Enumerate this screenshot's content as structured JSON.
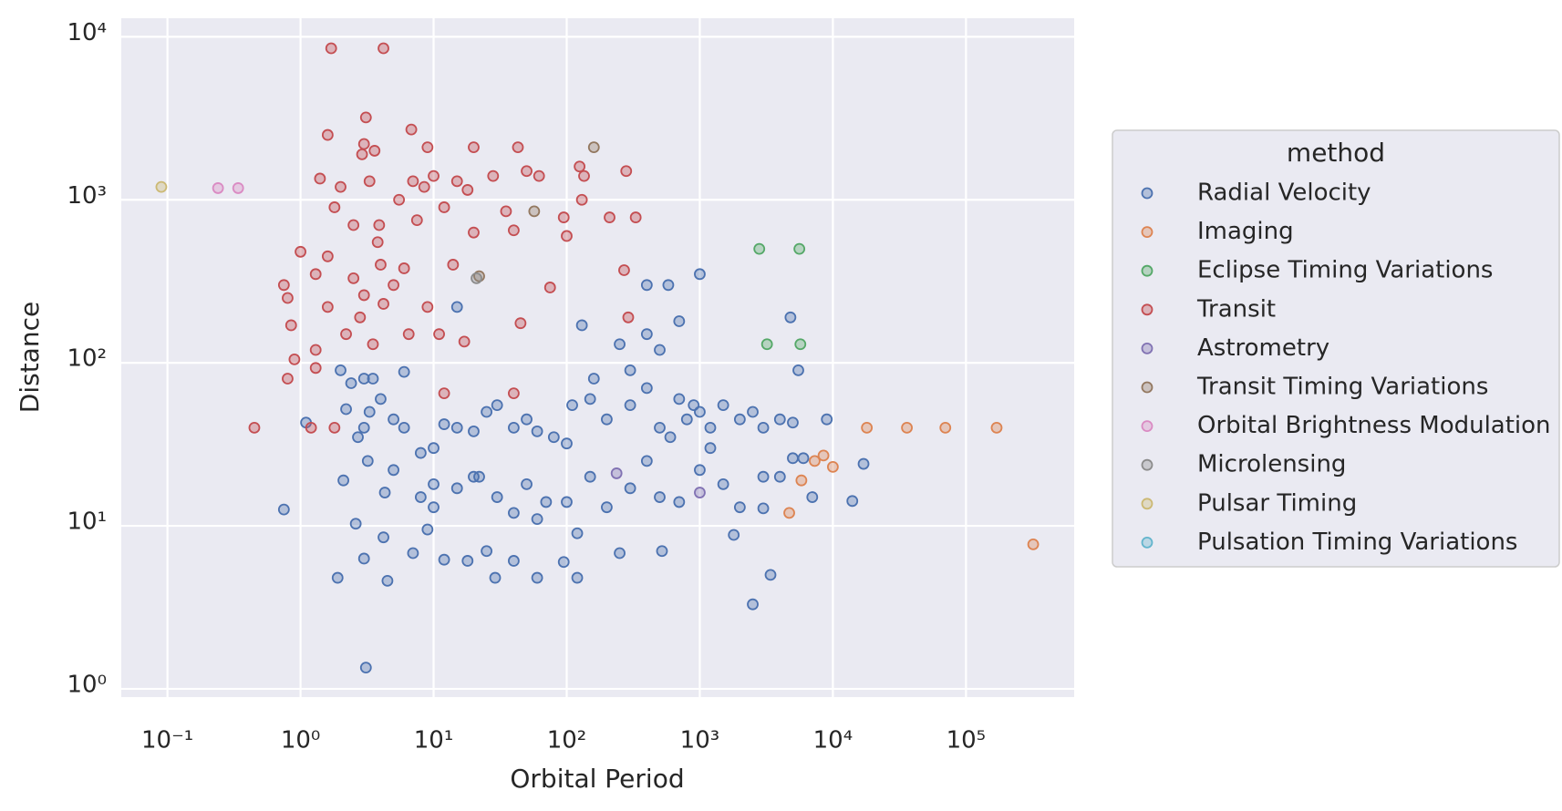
{
  "chart_data": {
    "type": "scatter",
    "xlabel": "Orbital Period",
    "ylabel": "Distance",
    "xscale": "log",
    "yscale": "log",
    "grid": true,
    "legend_title": "method",
    "legend_position": "right",
    "xlim": [
      0.045,
      650000
    ],
    "ylim": [
      0.89,
      13000
    ],
    "xticks": [
      {
        "value": 0.1,
        "label": "10⁻¹"
      },
      {
        "value": 1,
        "label": "10⁰"
      },
      {
        "value": 10,
        "label": "10¹"
      },
      {
        "value": 100,
        "label": "10²"
      },
      {
        "value": 1000,
        "label": "10³"
      },
      {
        "value": 10000,
        "label": "10⁴"
      },
      {
        "value": 100000,
        "label": "10⁵"
      }
    ],
    "yticks": [
      {
        "value": 1,
        "label": "10⁰"
      },
      {
        "value": 10,
        "label": "10¹"
      },
      {
        "value": 100,
        "label": "10²"
      },
      {
        "value": 1000,
        "label": "10³"
      },
      {
        "value": 10000,
        "label": "10⁴"
      }
    ],
    "series": [
      {
        "name": "Radial Velocity",
        "color": "#4c72b0",
        "x": [
          3.1,
          1.9,
          4.5,
          3,
          7,
          2.6,
          0.75,
          4.2,
          9,
          12,
          18,
          29,
          40,
          60,
          95,
          120,
          250,
          520,
          2500,
          3400,
          1800,
          3000,
          14000,
          17000,
          9000,
          5500,
          4800,
          1000,
          400,
          580,
          15,
          130,
          250,
          400,
          500,
          700,
          160,
          300,
          2,
          2.4,
          3.5,
          6,
          1.1,
          2.2,
          3,
          4,
          5,
          6,
          8,
          10,
          12,
          15,
          20,
          25,
          30,
          40,
          50,
          60,
          80,
          100,
          110,
          150,
          200,
          300,
          400,
          500,
          600,
          700,
          800,
          900,
          1000,
          1200,
          1500,
          2000,
          2500,
          3000,
          4000,
          5000,
          2.1,
          3.2,
          5,
          8,
          10,
          15,
          20,
          30,
          40,
          50,
          70,
          100,
          150,
          200,
          300,
          400,
          500,
          700,
          1000,
          1200,
          1500,
          2000,
          3000,
          4000,
          5000,
          6000,
          7000,
          3,
          3.3,
          2.7,
          4.3,
          10,
          22,
          120,
          25,
          60
        ],
        "values": [
          1.35,
          4.8,
          4.6,
          6.3,
          6.8,
          10.3,
          12.6,
          8.5,
          9.5,
          6.2,
          6.1,
          4.8,
          6.1,
          4.8,
          6,
          4.8,
          6.8,
          7,
          3.3,
          5,
          8.8,
          12.8,
          14.2,
          24,
          45,
          90,
          190,
          350,
          300,
          300,
          220,
          170,
          130,
          150,
          120,
          180,
          80,
          90,
          90,
          75,
          80,
          88,
          43,
          52,
          40,
          60,
          45,
          40,
          28,
          30,
          42,
          40,
          38,
          50,
          55,
          40,
          45,
          38,
          35,
          32,
          55,
          60,
          45,
          55,
          70,
          40,
          35,
          60,
          45,
          55,
          50,
          40,
          55,
          45,
          50,
          40,
          45,
          43,
          19,
          25,
          22,
          15,
          18,
          17,
          20,
          15,
          12,
          18,
          14,
          14,
          20,
          13,
          17,
          25,
          15,
          14,
          22,
          30,
          18,
          13,
          20,
          20,
          26,
          26,
          15,
          80,
          50,
          35,
          16,
          13,
          20,
          9,
          7,
          11
        ]
      },
      {
        "name": "Imaging",
        "color": "#dd8452",
        "x": [
          7300,
          8500,
          10000,
          5800,
          4700,
          18000,
          36000,
          70000,
          170000,
          320000
        ],
        "values": [
          25,
          27,
          23,
          19,
          12,
          40,
          40,
          40,
          40,
          7.7
        ]
      },
      {
        "name": "Eclipse Timing Variations",
        "color": "#55a868",
        "x": [
          2800,
          5600,
          3200,
          5700
        ],
        "values": [
          500,
          500,
          130,
          130
        ]
      },
      {
        "name": "Transit",
        "color": "#c44e52",
        "x": [
          1.7,
          4.2,
          3.1,
          1.6,
          6.8,
          3,
          9,
          20,
          43,
          3.6,
          2.9,
          1.4,
          3.3,
          7,
          10,
          15,
          28,
          50,
          62,
          125,
          135,
          280,
          2,
          8.5,
          18,
          5.5,
          130,
          1.8,
          12,
          35,
          95,
          210,
          330,
          2.5,
          7.5,
          40,
          100,
          1,
          1.6,
          3.8,
          20,
          270,
          0.75,
          1.3,
          2.5,
          4,
          6,
          14,
          75,
          0.8,
          1.6,
          3,
          5,
          9,
          45,
          290,
          0.85,
          2.2,
          3.5,
          6.5,
          11,
          17,
          0.9,
          1.3,
          1.3,
          0.8,
          2.8,
          0.45,
          1.2,
          1.8,
          12,
          40,
          4.2,
          3.9
        ],
        "values": [
          8500,
          8500,
          3200,
          2500,
          2700,
          2200,
          2100,
          2100,
          2100,
          2000,
          1900,
          1350,
          1300,
          1300,
          1400,
          1300,
          1400,
          1500,
          1400,
          1600,
          1400,
          1500,
          1200,
          1200,
          1150,
          1000,
          1000,
          900,
          900,
          850,
          780,
          780,
          780,
          700,
          750,
          650,
          600,
          480,
          450,
          550,
          630,
          370,
          300,
          350,
          330,
          400,
          380,
          400,
          290,
          250,
          220,
          260,
          300,
          220,
          175,
          190,
          170,
          150,
          130,
          150,
          150,
          135,
          105,
          120,
          93,
          80,
          190,
          40,
          40,
          40,
          65,
          65,
          230,
          700
        ]
      },
      {
        "name": "Astrometry",
        "color": "#8172b3",
        "x": [
          237,
          1000
        ],
        "values": [
          21,
          16
        ]
      },
      {
        "name": "Transit Timing Variations",
        "color": "#937860",
        "x": [
          160,
          57,
          22
        ],
        "values": [
          2100,
          850,
          340
        ]
      },
      {
        "name": "Orbital Brightness Modulation",
        "color": "#da8bc3",
        "x": [
          0.24,
          0.34
        ],
        "values": [
          1180,
          1180
        ]
      },
      {
        "name": "Microlensing",
        "color": "#8c8c8c",
        "x": [
          21
        ],
        "values": [
          330
        ]
      },
      {
        "name": "Pulsar Timing",
        "color": "#ccb974",
        "x": [
          0.09
        ],
        "values": [
          1200
        ]
      },
      {
        "name": "Pulsation Timing Variations",
        "color": "#64b5cd",
        "x": [],
        "values": []
      }
    ]
  }
}
